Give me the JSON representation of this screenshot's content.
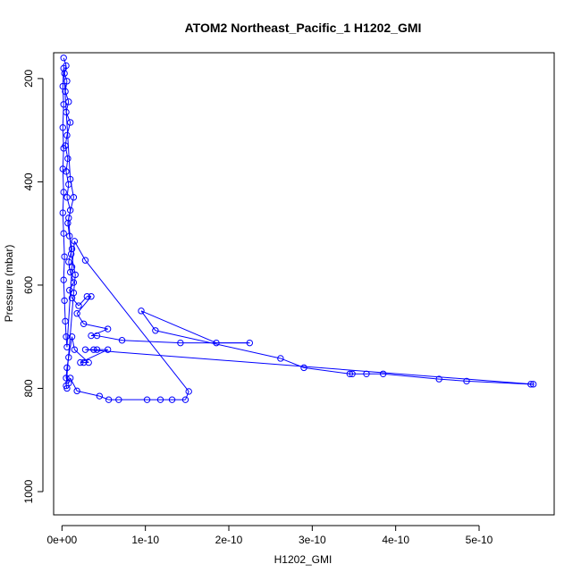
{
  "chart_data": {
    "type": "scatter",
    "title": "ATOM2 Northeast_Pacific_1 H1202_GMI",
    "xlabel": "H1202_GMI",
    "ylabel": "Pressure (mbar)",
    "xlim": [
      -1e-11,
      5.9e-10
    ],
    "ylim": [
      1045,
      150
    ],
    "y_reversed": true,
    "x_ticks": [
      0,
      1e-10,
      2e-10,
      3e-10,
      4e-10,
      5e-10
    ],
    "x_tick_labels": [
      "0e+00",
      "1e-10",
      "2e-10",
      "3e-10",
      "4e-10",
      "5e-10"
    ],
    "y_ticks": [
      200,
      400,
      600,
      800,
      1000
    ],
    "y_tick_labels": [
      "200",
      "400",
      "600",
      "800",
      "1000"
    ],
    "grid": false,
    "marker": "open-circle",
    "color": "#0000ff",
    "series": [
      {
        "points": [
          [
            2e-12,
            160
          ],
          [
            5e-12,
            175
          ],
          [
            3e-12,
            190
          ],
          [
            6e-12,
            205
          ],
          [
            4e-12,
            225
          ],
          [
            8e-12,
            245
          ],
          [
            5e-12,
            265
          ],
          [
            1e-11,
            285
          ],
          [
            6e-12,
            310
          ],
          [
            4e-12,
            330
          ],
          [
            7e-12,
            355
          ],
          [
            5e-12,
            380
          ],
          [
            8e-12,
            405
          ],
          [
            6e-12,
            430
          ],
          [
            1e-11,
            455
          ],
          [
            7e-12,
            480
          ],
          [
            9e-12,
            505
          ],
          [
            1.2e-11,
            530
          ],
          [
            8e-12,
            555
          ],
          [
            1e-11,
            575
          ],
          [
            1.4e-11,
            595
          ],
          [
            9e-12,
            610
          ],
          [
            1.2e-11,
            625
          ],
          [
            2e-11,
            640
          ],
          [
            3e-11,
            622
          ],
          [
            3.5e-11,
            622
          ],
          [
            1.8e-11,
            655
          ],
          [
            2.6e-11,
            675
          ],
          [
            5.5e-11,
            685
          ],
          [
            3.5e-11,
            698
          ],
          [
            4.2e-11,
            698
          ],
          [
            7.2e-11,
            707
          ],
          [
            1.42e-10,
            712
          ],
          [
            2.25e-10,
            712
          ],
          [
            1.85e-10,
            712
          ],
          [
            9.5e-11,
            650
          ],
          [
            1.12e-10,
            688
          ],
          [
            2.62e-10,
            742
          ],
          [
            2.9e-10,
            760
          ],
          [
            3.45e-10,
            772
          ],
          [
            3.48e-10,
            772
          ],
          [
            3.65e-10,
            772
          ],
          [
            3.85e-10,
            772
          ],
          [
            4.52e-10,
            782
          ],
          [
            4.85e-10,
            786
          ],
          [
            5.62e-10,
            792
          ],
          [
            5.65e-10,
            792
          ],
          [
            2.8e-11,
            725
          ],
          [
            3.8e-11,
            725
          ],
          [
            4.2e-11,
            725
          ],
          [
            5.5e-11,
            725
          ],
          [
            2.2e-11,
            750
          ],
          [
            2.6e-11,
            750
          ],
          [
            3.2e-11,
            750
          ],
          [
            1.5e-11,
            725
          ],
          [
            1.2e-11,
            700
          ],
          [
            8e-12,
            740
          ],
          [
            6e-12,
            760
          ],
          [
            5e-12,
            780
          ],
          [
            8e-12,
            790
          ],
          [
            1e-11,
            780
          ],
          [
            1.8e-11,
            805
          ],
          [
            4.5e-11,
            815
          ],
          [
            5.6e-11,
            822
          ],
          [
            6.8e-11,
            822
          ],
          [
            1.02e-10,
            822
          ],
          [
            1.18e-10,
            822
          ],
          [
            1.32e-10,
            822
          ],
          [
            1.48e-10,
            822
          ],
          [
            1.52e-10,
            806
          ],
          [
            2.8e-11,
            552
          ],
          [
            1.5e-11,
            515
          ],
          [
            1.2e-11,
            565
          ],
          [
            6e-12,
            720
          ],
          [
            5e-12,
            700
          ],
          [
            4e-12,
            670
          ],
          [
            3e-12,
            630
          ],
          [
            2e-12,
            590
          ],
          [
            3e-12,
            545
          ],
          [
            2e-12,
            500
          ],
          [
            1e-12,
            460
          ],
          [
            2e-12,
            420
          ],
          [
            1e-12,
            375
          ],
          [
            2e-12,
            335
          ],
          [
            1e-12,
            295
          ],
          [
            2e-12,
            250
          ],
          [
            1e-12,
            215
          ],
          [
            2e-12,
            180
          ],
          [
            1e-11,
            395
          ],
          [
            1.4e-11,
            430
          ],
          [
            8e-12,
            470
          ],
          [
            1.1e-11,
            540
          ],
          [
            1.6e-11,
            580
          ],
          [
            1.4e-11,
            615
          ],
          [
            5e-12,
            795
          ],
          [
            6e-12,
            800
          ]
        ]
      }
    ]
  }
}
